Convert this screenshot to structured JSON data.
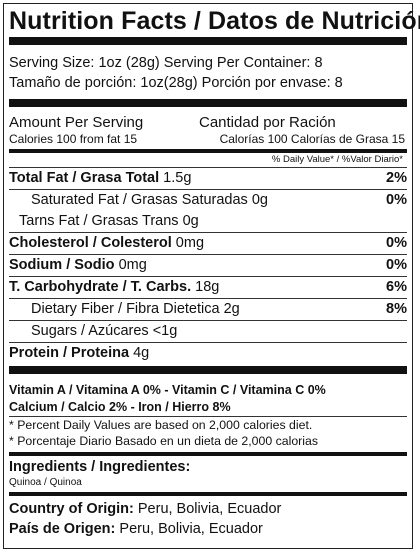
{
  "title": "Nutrition Facts / Datos de Nutrición",
  "serving": {
    "en": "Serving Size: 1oz (28g) Serving Per Container: 8",
    "es": "Tamaño de porción: 1oz(28g) Porción por envase: 8"
  },
  "amount": {
    "en_head": "Amount Per Serving",
    "es_head": "Cantidad por Ración",
    "en_cal": "Calories 100  from fat 15",
    "es_cal": "Calorías 100 Calorías de Grasa 15"
  },
  "dv_header": "% Daily Value* / %Valor Diario*",
  "nutrients": [
    {
      "label": "Total Fat / Grasa Total",
      "amount": "1.5g",
      "pct": "2%"
    },
    {
      "label": "Saturated Fat / Grasas Saturadas",
      "amount": "0g",
      "pct": "0%"
    },
    {
      "label": "Tarns Fat / Grasas Trans",
      "amount": "0g",
      "pct": ""
    },
    {
      "label": "Cholesterol / Colesterol",
      "amount": "0mg",
      "pct": "0%"
    },
    {
      "label": "Sodium / Sodio",
      "amount": "0mg",
      "pct": "0%"
    },
    {
      "label": "T. Carbohydrate / T. Carbs.",
      "amount": "18g",
      "pct": "6%"
    },
    {
      "label": "Dietary Fiber / Fibra Dietetica",
      "amount": "2g",
      "pct": "8%"
    },
    {
      "label": "Sugars / Azúcares",
      "amount": "<1g",
      "pct": ""
    },
    {
      "label": "Protein / Proteina",
      "amount": "4g",
      "pct": ""
    }
  ],
  "vitamins": {
    "line1": "Vitamin A / Vitamina A 0% - Vitamin C / Vitamina C 0%",
    "line2": "Calcium / Calcio 2% - Iron / Hierro 8%"
  },
  "footnotes": {
    "en": "* Percent Daily Values are based on 2,000 calories diet.",
    "es": "* Porcentaje Diario Basado en un dieta de 2,000 calorias"
  },
  "ingredients": {
    "heading": "Ingredients / Ingredientes:",
    "value": "Quinoa / Quinoa"
  },
  "origin": {
    "en_label": "Country of Origin:",
    "en_value": "Peru, Bolivia, Ecuador",
    "es_label": "País de Origen:",
    "es_value": "Peru, Bolivia, Ecuador"
  }
}
